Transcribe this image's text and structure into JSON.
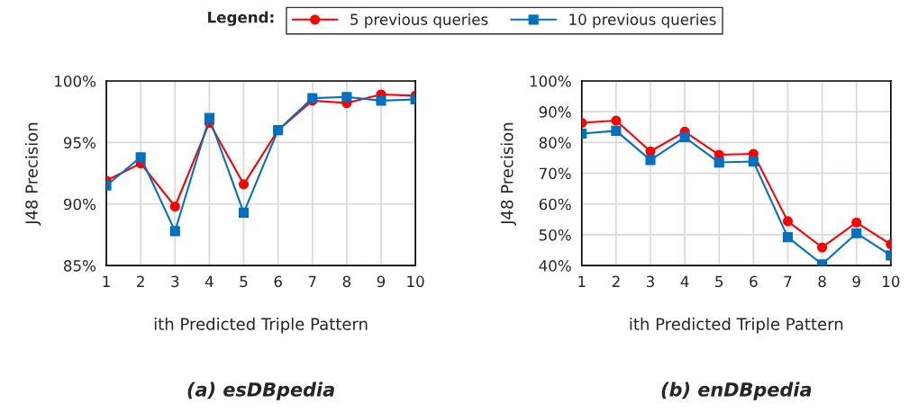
{
  "chart_data": [
    {
      "type": "line",
      "title": "(a) esDBpedia",
      "xlabel": "ith Predicted Triple Pattern",
      "ylabel": "J48 Precision",
      "legend_title": "Legend:",
      "legend": "top",
      "grid": true,
      "categories": [
        "1",
        "2",
        "3",
        "4",
        "5",
        "6",
        "7",
        "8",
        "9",
        "10"
      ],
      "ylim": [
        85,
        100
      ],
      "yticks": [
        {
          "value": 85,
          "label": "85%"
        },
        {
          "value": 90,
          "label": "90%"
        },
        {
          "value": 95,
          "label": "95%"
        },
        {
          "value": 100,
          "label": "100%"
        }
      ],
      "series": [
        {
          "name": "5 previous queries",
          "color": "#ff0000",
          "marker": "circle",
          "values": [
            91.9,
            93.3,
            89.8,
            96.6,
            91.6,
            96.0,
            98.4,
            98.2,
            98.9,
            98.8
          ]
        },
        {
          "name": "10 previous queries",
          "color": "#0070c0",
          "marker": "square",
          "values": [
            91.5,
            93.8,
            87.8,
            97.0,
            89.3,
            96.0,
            98.6,
            98.7,
            98.4,
            98.5
          ]
        }
      ]
    },
    {
      "type": "line",
      "title": "(b) enDBpedia",
      "xlabel": "ith Predicted Triple Pattern",
      "ylabel": "J48 Precision",
      "grid": true,
      "categories": [
        "1",
        "2",
        "3",
        "4",
        "5",
        "6",
        "7",
        "8",
        "9",
        "10"
      ],
      "ylim": [
        40,
        100
      ],
      "yticks": [
        {
          "value": 40,
          "label": "40%"
        },
        {
          "value": 50,
          "label": "50%"
        },
        {
          "value": 60,
          "label": "60%"
        },
        {
          "value": 70,
          "label": "70%"
        },
        {
          "value": 80,
          "label": "80%"
        },
        {
          "value": 90,
          "label": "90%"
        },
        {
          "value": 100,
          "label": "100%"
        }
      ],
      "series": [
        {
          "color": "#ff0000",
          "marker": "circle",
          "values": [
            86.4,
            87.1,
            77.1,
            83.5,
            76.0,
            76.3,
            54.4,
            45.9,
            54.0,
            46.9
          ]
        },
        {
          "color": "#0070c0",
          "marker": "square",
          "values": [
            82.9,
            83.8,
            74.3,
            81.7,
            73.5,
            73.8,
            49.2,
            40.4,
            50.5,
            43.3
          ]
        }
      ]
    }
  ]
}
